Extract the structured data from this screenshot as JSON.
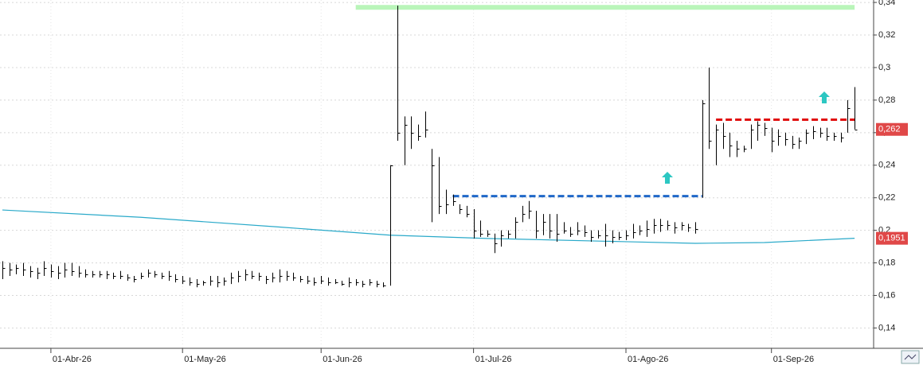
{
  "chart_data": {
    "type": "hlc",
    "categories": [
      null,
      null,
      null,
      null,
      null,
      null,
      null,
      "01-Abr-26",
      null,
      null,
      null,
      null,
      null,
      null,
      null,
      null,
      null,
      null,
      null,
      null,
      null,
      null,
      null,
      null,
      null,
      null,
      "01-May-26",
      null,
      null,
      null,
      null,
      null,
      null,
      null,
      null,
      null,
      null,
      null,
      null,
      null,
      null,
      null,
      null,
      null,
      null,
      null,
      "01-Jun-26",
      null,
      null,
      null,
      null,
      null,
      null,
      null,
      null,
      null,
      null,
      null,
      null,
      null,
      null,
      null,
      null,
      null,
      null,
      null,
      null,
      null,
      "01-Jul-26",
      null,
      null,
      null,
      null,
      null,
      null,
      null,
      null,
      null,
      null,
      null,
      null,
      null,
      null,
      null,
      null,
      null,
      null,
      null,
      null,
      null,
      "01-Ago-26",
      null,
      null,
      null,
      null,
      null,
      null,
      null,
      null,
      null,
      null,
      null,
      null,
      null,
      null,
      null,
      null,
      null,
      null,
      null,
      null,
      "01-Sep-26",
      null,
      null,
      null,
      null,
      null,
      null,
      null,
      null,
      null,
      null,
      null,
      null
    ],
    "high": [
      0.181,
      0.18,
      0.179,
      0.18,
      0.178,
      0.177,
      0.181,
      0.179,
      0.178,
      0.18,
      0.18,
      0.178,
      0.176,
      0.175,
      0.175,
      0.175,
      0.174,
      0.175,
      0.173,
      0.172,
      0.174,
      0.176,
      0.175,
      0.174,
      0.175,
      0.173,
      0.172,
      0.171,
      0.17,
      0.169,
      0.172,
      0.172,
      0.171,
      0.174,
      0.175,
      0.176,
      0.175,
      0.174,
      0.172,
      0.174,
      0.176,
      0.175,
      0.174,
      0.172,
      0.172,
      0.171,
      0.172,
      0.171,
      0.17,
      0.169,
      0.171,
      0.17,
      0.169,
      0.17,
      0.169,
      0.168,
      0.24,
      0.338,
      0.27,
      0.27,
      0.265,
      0.273,
      0.25,
      0.245,
      0.225,
      0.222,
      0.216,
      0.215,
      0.213,
      0.206,
      0.2,
      0.198,
      0.2,
      0.2,
      0.208,
      0.215,
      0.218,
      0.212,
      0.21,
      0.21,
      0.21,
      0.205,
      0.202,
      0.205,
      0.203,
      0.2,
      0.2,
      0.204,
      0.2,
      0.199,
      0.2,
      0.204,
      0.203,
      0.206,
      0.207,
      0.207,
      0.206,
      0.205,
      0.205,
      0.204,
      0.205,
      0.28,
      0.3,
      0.265,
      0.266,
      0.26,
      0.255,
      0.252,
      0.265,
      0.267,
      0.266,
      0.263,
      0.262,
      0.26,
      0.258,
      0.257,
      0.262,
      0.264,
      0.263,
      0.263,
      0.26,
      0.26,
      0.28,
      0.288
    ],
    "low": [
      0.17,
      0.172,
      0.173,
      0.172,
      0.171,
      0.17,
      0.172,
      0.171,
      0.17,
      0.171,
      0.172,
      0.171,
      0.171,
      0.171,
      0.171,
      0.17,
      0.17,
      0.17,
      0.169,
      0.168,
      0.17,
      0.171,
      0.171,
      0.17,
      0.169,
      0.168,
      0.167,
      0.166,
      0.165,
      0.166,
      0.166,
      0.165,
      0.166,
      0.167,
      0.168,
      0.169,
      0.17,
      0.169,
      0.167,
      0.168,
      0.168,
      0.169,
      0.169,
      0.168,
      0.167,
      0.166,
      0.167,
      0.166,
      0.167,
      0.166,
      0.165,
      0.166,
      0.165,
      0.166,
      0.165,
      0.165,
      0.166,
      0.255,
      0.24,
      0.25,
      0.255,
      0.257,
      0.205,
      0.21,
      0.21,
      0.215,
      0.21,
      0.208,
      0.195,
      0.196,
      0.196,
      0.186,
      0.19,
      0.195,
      0.195,
      0.205,
      0.207,
      0.195,
      0.197,
      0.195,
      0.193,
      0.198,
      0.196,
      0.197,
      0.196,
      0.193,
      0.195,
      0.19,
      0.192,
      0.194,
      0.194,
      0.195,
      0.197,
      0.196,
      0.198,
      0.199,
      0.2,
      0.198,
      0.2,
      0.199,
      0.198,
      0.22,
      0.25,
      0.24,
      0.25,
      0.245,
      0.245,
      0.248,
      0.25,
      0.255,
      0.258,
      0.248,
      0.252,
      0.252,
      0.25,
      0.25,
      0.253,
      0.256,
      0.257,
      0.255,
      0.255,
      0.254,
      0.26,
      0.262
    ],
    "close": [
      0.177,
      0.176,
      0.177,
      0.176,
      0.175,
      0.174,
      0.177,
      0.175,
      0.174,
      0.176,
      0.175,
      0.174,
      0.173,
      0.173,
      0.173,
      0.173,
      0.172,
      0.172,
      0.171,
      0.17,
      0.172,
      0.174,
      0.173,
      0.172,
      0.172,
      0.17,
      0.169,
      0.168,
      0.167,
      0.168,
      0.169,
      0.168,
      0.169,
      0.171,
      0.172,
      0.173,
      0.172,
      0.172,
      0.17,
      0.171,
      0.172,
      0.172,
      0.171,
      0.17,
      0.169,
      0.168,
      0.169,
      0.168,
      0.168,
      0.167,
      0.168,
      0.168,
      0.167,
      0.168,
      0.167,
      0.166,
      0.24,
      0.26,
      0.265,
      0.26,
      0.258,
      0.262,
      0.24,
      0.215,
      0.216,
      0.218,
      0.213,
      0.21,
      0.2,
      0.198,
      0.198,
      0.192,
      0.197,
      0.198,
      0.205,
      0.21,
      0.212,
      0.2,
      0.205,
      0.2,
      0.198,
      0.2,
      0.198,
      0.2,
      0.199,
      0.196,
      0.197,
      0.197,
      0.196,
      0.196,
      0.197,
      0.199,
      0.2,
      0.201,
      0.203,
      0.203,
      0.203,
      0.202,
      0.203,
      0.202,
      0.201,
      0.278,
      0.255,
      0.262,
      0.258,
      0.252,
      0.25,
      0.25,
      0.262,
      0.265,
      0.263,
      0.255,
      0.258,
      0.256,
      0.253,
      0.255,
      0.26,
      0.261,
      0.26,
      0.258,
      0.258,
      0.257,
      0.275,
      0.262
    ],
    "bar_color": "#000000",
    "moving_average": {
      "color": "#29a9c9",
      "x": [
        0,
        20,
        40,
        56,
        70,
        90,
        100,
        110,
        123
      ],
      "values": [
        0.2125,
        0.208,
        0.202,
        0.197,
        0.195,
        0.193,
        0.192,
        0.1925,
        0.1951
      ]
    },
    "levels": [
      {
        "value": 0.337,
        "from": 51,
        "to": 123,
        "color": "#b9f5b9",
        "dashed": false
      },
      {
        "value": 0.221,
        "from": 65,
        "to": 101,
        "color": "#1f67c8",
        "dashed": true
      },
      {
        "value": 0.268,
        "from": 103,
        "to": 123,
        "color": "#e01010",
        "dashed": true
      }
    ],
    "price_labels": [
      {
        "value": 0.262,
        "label": "0,262"
      },
      {
        "value": 0.1951,
        "label": "0,1951"
      }
    ],
    "ylim": [
      0.128,
      0.3415
    ],
    "yticks": [
      {
        "value": 0.14,
        "label": "0,14"
      },
      {
        "value": 0.16,
        "label": "0,16"
      },
      {
        "value": 0.18,
        "label": "0,18"
      },
      {
        "value": 0.2,
        "label": "0,2"
      },
      {
        "value": 0.22,
        "label": "0,22"
      },
      {
        "value": 0.24,
        "label": "0,24"
      },
      {
        "value": 0.26,
        "label": "0,26"
      },
      {
        "value": 0.28,
        "label": "0,28"
      },
      {
        "value": 0.3,
        "label": "0,3"
      },
      {
        "value": 0.32,
        "label": "0,32"
      },
      {
        "value": 0.34,
        "label": "0,34"
      }
    ],
    "grid": true
  }
}
